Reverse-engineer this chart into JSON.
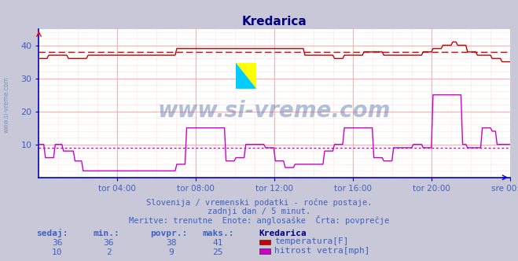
{
  "title": "Kredarica",
  "background_color": "#c8c8d8",
  "plot_bg_color": "#ffffff",
  "grid_color": "#ffb0b0",
  "grid_minor_color": "#ffe8e8",
  "xlabel_color": "#4060c0",
  "title_color": "#000080",
  "axis_color": "#0000cc",
  "text_color": "#4060c0",
  "watermark": "www.si-vreme.com",
  "watermark_color": "#4060a0",
  "subtitle1": "Slovenija / vremenski podatki - ročne postaje.",
  "subtitle2": "zadnji dan / 5 minut.",
  "subtitle3": "Meritve: trenutne  Enote: anglosaške  Črta: povprečje",
  "xlabels": [
    "tor 04:00",
    "tor 08:00",
    "tor 12:00",
    "tor 16:00",
    "tor 20:00",
    "sre 00:00"
  ],
  "ylim": [
    0,
    45
  ],
  "yticks": [
    10,
    20,
    30,
    40
  ],
  "temp_avg": 38,
  "wind_avg": 9,
  "temp_color": "#cc0000",
  "wind_color": "#cc00cc",
  "legend_title": "Kredarica",
  "legend_items": [
    {
      "label": "temperatura[F]",
      "color": "#cc0000"
    },
    {
      "label": "hitrost vetra[mph]",
      "color": "#cc00cc"
    }
  ],
  "table_headers": [
    "sedaj:",
    "min.:",
    "povpr.:",
    "maks.:"
  ],
  "table_data": [
    [
      36,
      36,
      38,
      41
    ],
    [
      10,
      2,
      9,
      25
    ]
  ],
  "n_points": 288,
  "logo_yellow": "#ffff00",
  "logo_cyan": "#00ccff",
  "logo_blue": "#0000aa"
}
